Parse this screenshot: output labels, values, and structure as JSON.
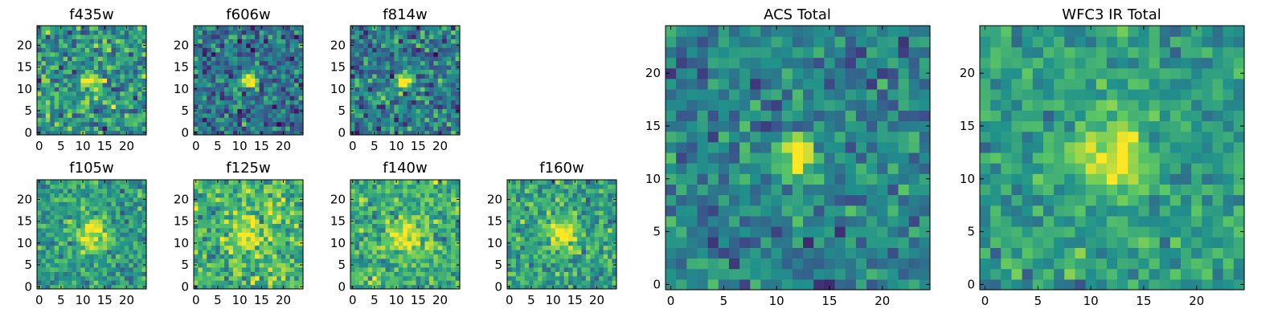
{
  "figure": {
    "colormap": "viridis",
    "colormap_stops": [
      "#440154",
      "#3b528b",
      "#21918c",
      "#5ec962",
      "#fde725"
    ]
  },
  "chart_data": [
    {
      "type": "heatmap",
      "title": "f435w",
      "grid_size": 25,
      "xticks": [
        0,
        5,
        10,
        15,
        20
      ],
      "yticks": [
        0,
        5,
        10,
        15,
        20
      ],
      "xlim": [
        -0.5,
        24.5
      ],
      "ylim": [
        -0.5,
        24.5
      ],
      "source_center": [
        12,
        12
      ],
      "source_sigma": 1.4,
      "background_level": 0.52,
      "noise": 0.17,
      "seed": 11
    },
    {
      "type": "heatmap",
      "title": "f606w",
      "grid_size": 25,
      "xticks": [
        0,
        5,
        10,
        15,
        20
      ],
      "yticks": [
        0,
        5,
        10,
        15,
        20
      ],
      "xlim": [
        -0.5,
        24.5
      ],
      "ylim": [
        -0.5,
        24.5
      ],
      "source_center": [
        12,
        12
      ],
      "source_sigma": 1.3,
      "background_level": 0.38,
      "noise": 0.15,
      "seed": 23
    },
    {
      "type": "heatmap",
      "title": "f814w",
      "grid_size": 25,
      "xticks": [
        0,
        5,
        10,
        15,
        20
      ],
      "yticks": [
        0,
        5,
        10,
        15,
        20
      ],
      "xlim": [
        -0.5,
        24.5
      ],
      "ylim": [
        -0.5,
        24.5
      ],
      "source_center": [
        12,
        12
      ],
      "source_sigma": 1.3,
      "background_level": 0.42,
      "noise": 0.16,
      "seed": 37
    },
    {
      "type": "heatmap",
      "title": "f105w",
      "grid_size": 25,
      "xticks": [
        0,
        5,
        10,
        15,
        20
      ],
      "yticks": [
        0,
        5,
        10,
        15,
        20
      ],
      "xlim": [
        -0.5,
        24.5
      ],
      "ylim": [
        -0.5,
        24.5
      ],
      "source_center": [
        12,
        12
      ],
      "source_sigma": 2.4,
      "background_level": 0.55,
      "noise": 0.12,
      "seed": 41
    },
    {
      "type": "heatmap",
      "title": "f125w",
      "grid_size": 25,
      "xticks": [
        0,
        5,
        10,
        15,
        20
      ],
      "yticks": [
        0,
        5,
        10,
        15,
        20
      ],
      "xlim": [
        -0.5,
        24.5
      ],
      "ylim": [
        -0.5,
        24.5
      ],
      "source_center": [
        12,
        12
      ],
      "source_sigma": 2.4,
      "background_level": 0.66,
      "noise": 0.15,
      "seed": 53
    },
    {
      "type": "heatmap",
      "title": "f140w",
      "grid_size": 25,
      "xticks": [
        0,
        5,
        10,
        15,
        20
      ],
      "yticks": [
        0,
        5,
        10,
        15,
        20
      ],
      "xlim": [
        -0.5,
        24.5
      ],
      "ylim": [
        -0.5,
        24.5
      ],
      "source_center": [
        12,
        12
      ],
      "source_sigma": 2.6,
      "background_level": 0.64,
      "noise": 0.13,
      "seed": 67
    },
    {
      "type": "heatmap",
      "title": "f160w",
      "grid_size": 25,
      "xticks": [
        0,
        5,
        10,
        15,
        20
      ],
      "yticks": [
        0,
        5,
        10,
        15,
        20
      ],
      "xlim": [
        -0.5,
        24.5
      ],
      "ylim": [
        -0.5,
        24.5
      ],
      "source_center": [
        12,
        12
      ],
      "source_sigma": 2.3,
      "background_level": 0.58,
      "noise": 0.13,
      "seed": 79
    },
    {
      "type": "heatmap",
      "title": "ACS Total",
      "grid_size": 25,
      "xticks": [
        0,
        5,
        10,
        15,
        20
      ],
      "yticks": [
        0,
        5,
        10,
        15,
        20
      ],
      "xlim": [
        -0.5,
        24.5
      ],
      "ylim": [
        -0.5,
        24.5
      ],
      "source_center": [
        12,
        12
      ],
      "source_sigma": 1.3,
      "background_level": 0.45,
      "noise": 0.12,
      "seed": 83
    },
    {
      "type": "heatmap",
      "title": "WFC3 IR Total",
      "grid_size": 25,
      "xticks": [
        0,
        5,
        10,
        15,
        20
      ],
      "yticks": [
        0,
        5,
        10,
        15,
        20
      ],
      "xlim": [
        -0.5,
        24.5
      ],
      "ylim": [
        -0.5,
        24.5
      ],
      "source_center": [
        12,
        12
      ],
      "source_sigma": 2.2,
      "background_level": 0.55,
      "noise": 0.1,
      "seed": 97
    }
  ]
}
